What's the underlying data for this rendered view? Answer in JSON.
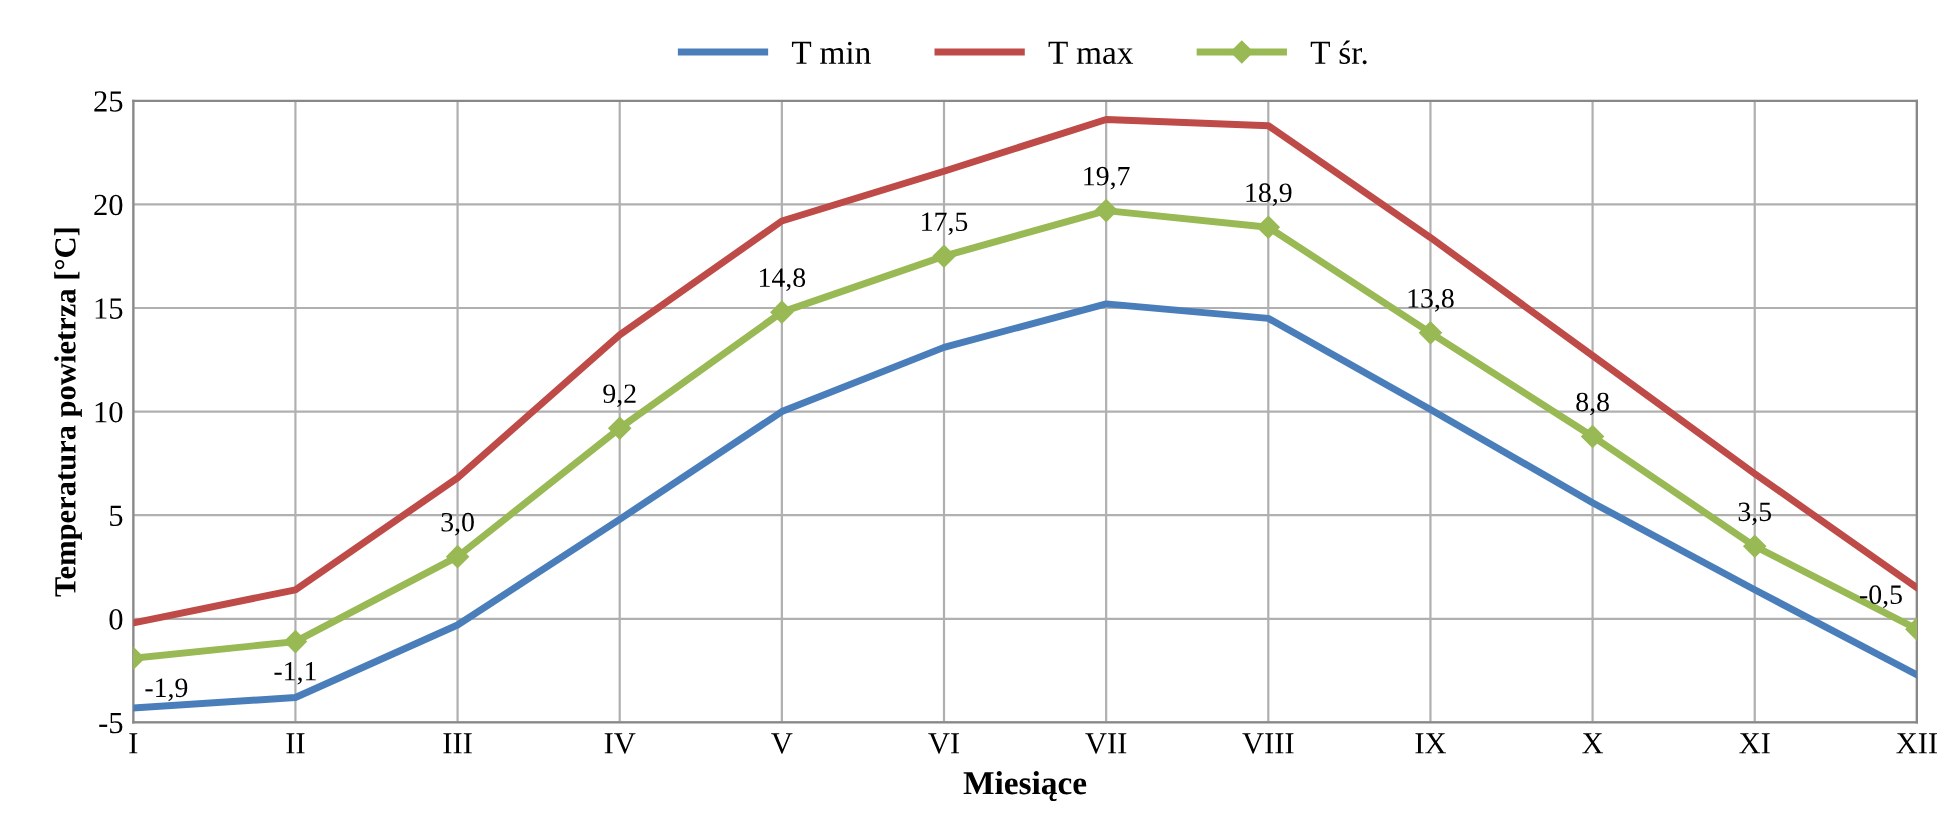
{
  "chart_data": {
    "type": "line",
    "xlabel": "Miesiące",
    "ylabel": "Temperatura powietrza [°C]",
    "categories": [
      "I",
      "II",
      "III",
      "IV",
      "V",
      "VI",
      "VII",
      "VIII",
      "IX",
      "X",
      "XI",
      "XII"
    ],
    "series": [
      {
        "name": "T min",
        "color": "#4a7ebb",
        "values": [
          -4.3,
          -3.8,
          -0.3,
          4.8,
          10.0,
          13.1,
          15.2,
          14.5,
          10.1,
          5.6,
          1.4,
          -2.7
        ]
      },
      {
        "name": "T max",
        "color": "#be4b48",
        "values": [
          -0.2,
          1.4,
          6.8,
          13.7,
          19.2,
          21.6,
          24.1,
          23.8,
          18.4,
          12.7,
          7.0,
          1.5
        ]
      },
      {
        "name": "T śr.",
        "color": "#98b954",
        "marker": "diamond",
        "values": [
          -1.9,
          -1.1,
          3.0,
          9.2,
          14.8,
          17.5,
          19.7,
          18.9,
          13.8,
          8.8,
          3.5,
          -0.5
        ],
        "value_labels": [
          "-1,9",
          "-1,1",
          "3,0",
          "9,2",
          "14,8",
          "17,5",
          "19,7",
          "18,9",
          "13,8",
          "8,8",
          "3,5",
          "-0,5"
        ]
      }
    ],
    "ylim": [
      -5,
      25
    ],
    "yticks": [
      -5,
      0,
      5,
      10,
      15,
      20,
      25
    ],
    "grid": true,
    "legend": "top",
    "line_style": "solid"
  }
}
